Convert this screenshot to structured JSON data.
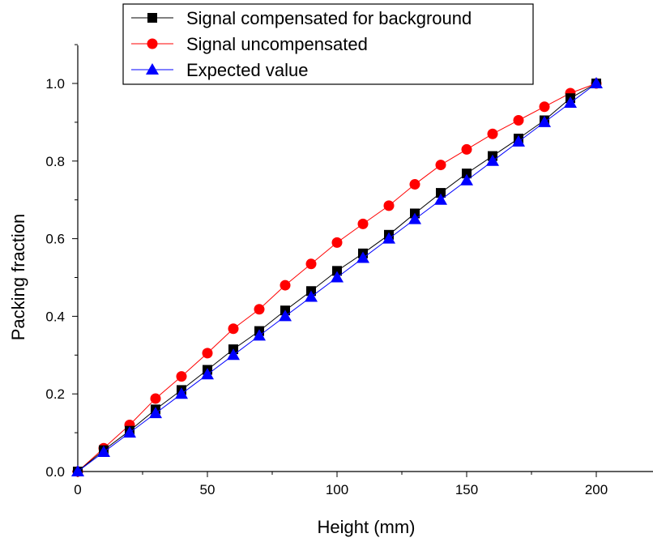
{
  "chart_data": {
    "type": "line",
    "title": "",
    "xlabel": "Height (mm)",
    "ylabel": "Packing fraction",
    "xlim": [
      0,
      220
    ],
    "ylim": [
      0,
      1.1
    ],
    "xticks": [
      0,
      50,
      100,
      150,
      200
    ],
    "yticks": [
      0.0,
      0.2,
      0.4,
      0.6,
      0.8,
      1.0
    ],
    "xtick_labels": [
      "0",
      "50",
      "100",
      "150",
      "200"
    ],
    "ytick_labels": [
      "0.0",
      "0.2",
      "0.4",
      "0.6",
      "0.8",
      "1.0"
    ],
    "grid": false,
    "legend_position": "top-center",
    "x": [
      0,
      10,
      20,
      30,
      40,
      50,
      60,
      70,
      80,
      90,
      100,
      110,
      120,
      130,
      140,
      150,
      160,
      170,
      180,
      190,
      200
    ],
    "series": [
      {
        "name": "Signal compensated for background",
        "marker": "square",
        "color": "#000000",
        "values": [
          0.0,
          0.055,
          0.105,
          0.16,
          0.21,
          0.262,
          0.315,
          0.362,
          0.415,
          0.465,
          0.517,
          0.562,
          0.61,
          0.665,
          0.718,
          0.768,
          0.813,
          0.858,
          0.905,
          0.962,
          1.0
        ]
      },
      {
        "name": "Signal uncompensated",
        "marker": "circle",
        "color": "#ff0000",
        "values": [
          0.0,
          0.06,
          0.12,
          0.188,
          0.245,
          0.305,
          0.368,
          0.418,
          0.48,
          0.535,
          0.59,
          0.638,
          0.685,
          0.74,
          0.79,
          0.83,
          0.87,
          0.905,
          0.94,
          0.975,
          1.0
        ]
      },
      {
        "name": "Expected value",
        "marker": "triangle",
        "color": "#0000ff",
        "values": [
          0.0,
          0.05,
          0.1,
          0.15,
          0.2,
          0.25,
          0.3,
          0.35,
          0.4,
          0.45,
          0.5,
          0.55,
          0.6,
          0.65,
          0.7,
          0.75,
          0.8,
          0.85,
          0.9,
          0.95,
          1.0
        ]
      }
    ]
  }
}
